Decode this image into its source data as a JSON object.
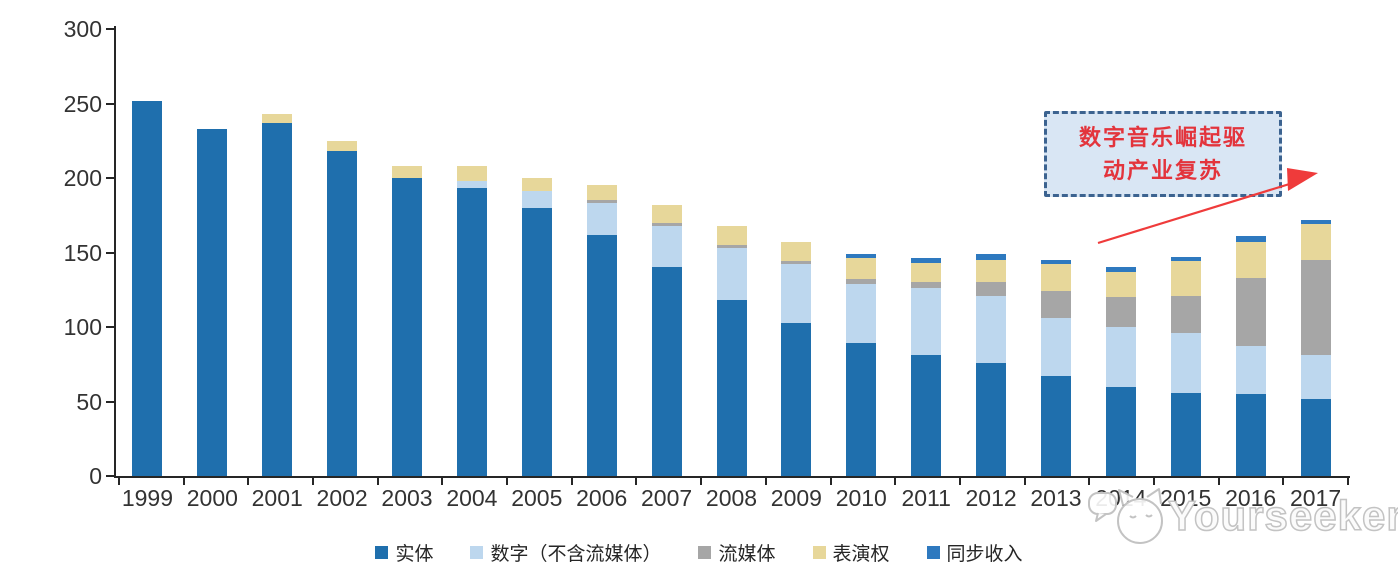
{
  "chart_data": {
    "type": "bar",
    "stacked": true,
    "title": "",
    "xlabel": "",
    "ylabel": "",
    "grid": false,
    "legend_position": "bottom",
    "ylim": [
      0,
      300
    ],
    "yticks": [
      0,
      50,
      100,
      150,
      200,
      250,
      300
    ],
    "categories": [
      "1999",
      "2000",
      "2001",
      "2002",
      "2003",
      "2004",
      "2005",
      "2006",
      "2007",
      "2008",
      "2009",
      "2010",
      "2011",
      "2012",
      "2013",
      "2014",
      "2015",
      "2016",
      "2017"
    ],
    "series": [
      {
        "key": "physical",
        "name": "实体",
        "color": "#1F6FAD",
        "values": [
          252,
          233,
          237,
          218,
          200,
          193,
          180,
          162,
          140,
          118,
          103,
          89,
          81,
          76,
          67,
          60,
          56,
          55,
          52
        ]
      },
      {
        "key": "digital-excl-streaming",
        "name": "数字（不含流媒体）",
        "color": "#BDD7EE",
        "values": [
          0,
          0,
          0,
          0,
          0,
          5,
          11,
          21,
          28,
          35,
          39,
          40,
          45,
          45,
          39,
          40,
          40,
          32,
          29
        ]
      },
      {
        "key": "streaming",
        "name": "流媒体",
        "color": "#A6A6A6",
        "values": [
          0,
          0,
          0,
          0,
          0,
          0,
          0,
          2,
          2,
          2,
          2,
          3,
          4,
          9,
          18,
          20,
          25,
          46,
          64
        ]
      },
      {
        "key": "performance-rights",
        "name": "表演权",
        "color": "#E7D79A",
        "values": [
          0,
          0,
          6,
          7,
          8,
          10,
          9,
          10,
          12,
          13,
          13,
          14,
          13,
          15,
          18,
          17,
          23,
          24,
          24
        ]
      },
      {
        "key": "sync-revenue",
        "name": "同步收入",
        "color": "#2E79BF",
        "values": [
          0,
          0,
          0,
          0,
          0,
          0,
          0,
          0,
          0,
          0,
          0,
          3,
          3,
          4,
          3,
          3,
          3,
          4,
          3
        ]
      }
    ]
  },
  "annotation": {
    "line1": "数字音乐崛起驱",
    "line2": "动产业复苏",
    "text_color": "#E3343C",
    "box_fill": "#D9E6F4",
    "box_border": "#3C6390",
    "arrow_color": "#EF3B3B"
  },
  "watermark": {
    "text": "Yourseeker",
    "logo": "cat-chat-logo-icon",
    "color": "#C3C3C3"
  }
}
